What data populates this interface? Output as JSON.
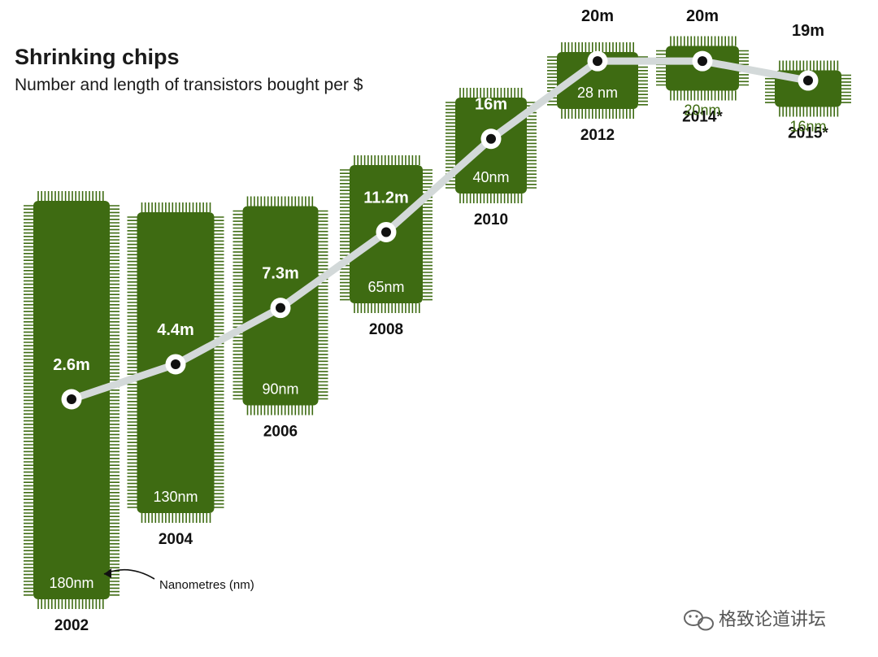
{
  "chart_data": {
    "type": "line",
    "title": "Shrinking chips",
    "subtitle": "Number and length of transistors bought per $",
    "xlabel": "",
    "ylabel": "",
    "categories": [
      "2002",
      "2004",
      "2006",
      "2008",
      "2010",
      "2012",
      "2014*",
      "2015*"
    ],
    "series": [
      {
        "values": [
          2.6,
          4.4,
          7.3,
          11.2,
          16,
          20,
          20,
          19
        ],
        "value_labels": [
          "2.6m",
          "4.4m",
          "7.3m",
          "11.2m",
          "16m",
          "20m",
          "20m",
          "19m"
        ]
      }
    ],
    "nodes_nm": [
      180,
      130,
      90,
      65,
      40,
      28,
      20,
      16
    ],
    "node_labels": [
      "180nm",
      "130nm",
      "90nm",
      "65nm",
      "40nm",
      "28 nm",
      "20nm",
      "16nm"
    ],
    "ylim": [
      0,
      22
    ],
    "grid": false,
    "legend": "none",
    "annotation": "Nanometres (nm)"
  },
  "watermark": "格致论道讲坛",
  "colors": {
    "chip": "#3e6b12",
    "chip_pins": "#3e6b12",
    "line": "#d3d9d9",
    "marker_outer": "#ffffff",
    "marker_inner": "#111111",
    "text_dark": "#111111",
    "text_light": "#ffffff",
    "nm_light": "#ffffff",
    "nm_green": "#3e6b12"
  }
}
